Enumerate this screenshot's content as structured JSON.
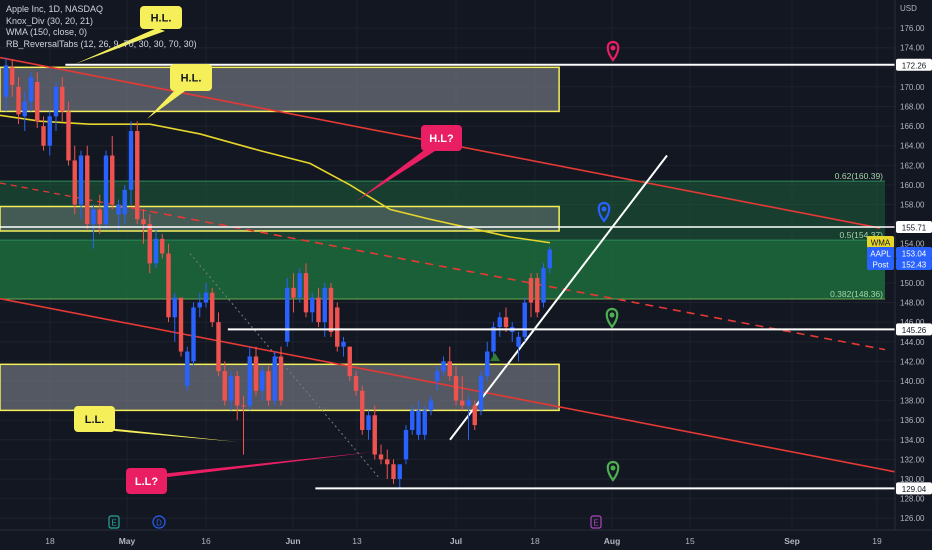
{
  "legend": {
    "title": "Apple Inc, 1D, NASDAQ",
    "ind1": "Knox_Div (30, 20, 21)",
    "ind2": "WMA (150, close, 0)",
    "ind3": "RB_ReversalTabs (12, 26, 9, 70, 30, 30, 70, 30)"
  },
  "chart_data": {
    "type": "candlestick",
    "currency_label": "USD",
    "ylim": [
      125,
      178
    ],
    "y_ticks": [
      126,
      128,
      130,
      132,
      134,
      136,
      138,
      140,
      142,
      144,
      146,
      148,
      150,
      152,
      154,
      156,
      158,
      160,
      162,
      164,
      166,
      168,
      170,
      172,
      174,
      176
    ],
    "x_ticks": [
      "18",
      "May",
      "16",
      "Jun",
      "13",
      "Jul",
      "18",
      "Aug",
      "15",
      "Sep",
      "19"
    ],
    "candles": [
      {
        "o": 169.0,
        "h": 173.0,
        "l": 167.5,
        "c": 172.2,
        "col": "blue"
      },
      {
        "o": 172.0,
        "h": 172.8,
        "l": 169.0,
        "c": 170.2,
        "col": "red"
      },
      {
        "o": 170.0,
        "h": 171.0,
        "l": 166.2,
        "c": 167.2,
        "col": "red"
      },
      {
        "o": 167.0,
        "h": 169.5,
        "l": 165.5,
        "c": 168.5,
        "col": "blue"
      },
      {
        "o": 168.5,
        "h": 171.5,
        "l": 167.5,
        "c": 171.0,
        "col": "blue"
      },
      {
        "o": 170.5,
        "h": 171.5,
        "l": 165.8,
        "c": 166.5,
        "col": "red"
      },
      {
        "o": 166.0,
        "h": 167.0,
        "l": 163.5,
        "c": 164.0,
        "col": "red"
      },
      {
        "o": 164.0,
        "h": 167.5,
        "l": 163.0,
        "c": 167.0,
        "col": "blue"
      },
      {
        "o": 167.0,
        "h": 170.5,
        "l": 165.5,
        "c": 170.0,
        "col": "blue"
      },
      {
        "o": 170.0,
        "h": 171.0,
        "l": 166.5,
        "c": 167.5,
        "col": "red"
      },
      {
        "o": 167.5,
        "h": 168.5,
        "l": 162.0,
        "c": 162.5,
        "col": "red"
      },
      {
        "o": 162.5,
        "h": 164.0,
        "l": 157.0,
        "c": 158.0,
        "col": "red"
      },
      {
        "o": 158.0,
        "h": 163.5,
        "l": 156.5,
        "c": 163.0,
        "col": "blue"
      },
      {
        "o": 163.0,
        "h": 164.0,
        "l": 155.5,
        "c": 156.0,
        "col": "red"
      },
      {
        "o": 156.0,
        "h": 158.0,
        "l": 153.5,
        "c": 157.5,
        "col": "blue"
      },
      {
        "o": 157.5,
        "h": 159.0,
        "l": 155.0,
        "c": 156.0,
        "col": "red"
      },
      {
        "o": 156.0,
        "h": 163.5,
        "l": 155.5,
        "c": 163.0,
        "col": "blue"
      },
      {
        "o": 163.0,
        "h": 165.0,
        "l": 157.5,
        "c": 158.0,
        "col": "red"
      },
      {
        "o": 158.0,
        "h": 158.5,
        "l": 155.5,
        "c": 157.0,
        "col": "blue"
      },
      {
        "o": 157.0,
        "h": 160.0,
        "l": 156.0,
        "c": 159.5,
        "col": "blue"
      },
      {
        "o": 159.5,
        "h": 166.5,
        "l": 158.0,
        "c": 165.5,
        "col": "blue"
      },
      {
        "o": 165.5,
        "h": 166.5,
        "l": 156.0,
        "c": 156.5,
        "col": "red"
      },
      {
        "o": 156.5,
        "h": 157.5,
        "l": 154.0,
        "c": 156.0,
        "col": "red"
      },
      {
        "o": 156.0,
        "h": 157.0,
        "l": 151.0,
        "c": 152.0,
        "col": "red"
      },
      {
        "o": 152.0,
        "h": 155.5,
        "l": 151.5,
        "c": 154.5,
        "col": "blue"
      },
      {
        "o": 154.5,
        "h": 155.0,
        "l": 152.5,
        "c": 153.0,
        "col": "red"
      },
      {
        "o": 153.0,
        "h": 154.0,
        "l": 146.0,
        "c": 146.5,
        "col": "red"
      },
      {
        "o": 146.5,
        "h": 149.0,
        "l": 144.0,
        "c": 148.5,
        "col": "blue"
      },
      {
        "o": 148.5,
        "h": 148.5,
        "l": 142.5,
        "c": 143.0,
        "col": "red"
      },
      {
        "o": 143.0,
        "h": 143.5,
        "l": 139.0,
        "c": 139.5,
        "col": "blue"
      },
      {
        "o": 142.0,
        "h": 148.0,
        "l": 141.5,
        "c": 147.5,
        "col": "blue"
      },
      {
        "o": 147.5,
        "h": 149.0,
        "l": 146.5,
        "c": 148.0,
        "col": "blue"
      },
      {
        "o": 148.0,
        "h": 150.0,
        "l": 147.5,
        "c": 149.0,
        "col": "blue"
      },
      {
        "o": 149.0,
        "h": 149.5,
        "l": 145.5,
        "c": 146.0,
        "col": "red"
      },
      {
        "o": 146.0,
        "h": 147.0,
        "l": 140.5,
        "c": 141.0,
        "col": "red"
      },
      {
        "o": 141.0,
        "h": 142.0,
        "l": 137.5,
        "c": 138.0,
        "col": "red"
      },
      {
        "o": 138.0,
        "h": 141.0,
        "l": 137.0,
        "c": 140.5,
        "col": "blue"
      },
      {
        "o": 140.5,
        "h": 141.0,
        "l": 136.0,
        "c": 137.5,
        "col": "red"
      },
      {
        "o": 137.5,
        "h": 138.5,
        "l": 132.5,
        "c": 137.5,
        "col": "red"
      },
      {
        "o": 137.5,
        "h": 143.5,
        "l": 137.0,
        "c": 142.5,
        "col": "blue"
      },
      {
        "o": 142.5,
        "h": 143.5,
        "l": 138.5,
        "c": 139.0,
        "col": "red"
      },
      {
        "o": 139.0,
        "h": 141.5,
        "l": 138.0,
        "c": 141.0,
        "col": "blue"
      },
      {
        "o": 141.0,
        "h": 141.5,
        "l": 137.5,
        "c": 138.0,
        "col": "red"
      },
      {
        "o": 138.0,
        "h": 143.0,
        "l": 137.5,
        "c": 142.5,
        "col": "blue"
      },
      {
        "o": 142.5,
        "h": 143.5,
        "l": 137.5,
        "c": 138.0,
        "col": "red"
      },
      {
        "o": 144.0,
        "h": 150.5,
        "l": 143.5,
        "c": 149.5,
        "col": "blue"
      },
      {
        "o": 149.5,
        "h": 151.0,
        "l": 147.0,
        "c": 148.5,
        "col": "red"
      },
      {
        "o": 148.5,
        "h": 151.5,
        "l": 148.0,
        "c": 151.0,
        "col": "blue"
      },
      {
        "o": 151.0,
        "h": 152.0,
        "l": 146.5,
        "c": 147.0,
        "col": "red"
      },
      {
        "o": 147.0,
        "h": 149.0,
        "l": 146.0,
        "c": 148.5,
        "col": "blue"
      },
      {
        "o": 148.5,
        "h": 149.5,
        "l": 145.5,
        "c": 146.0,
        "col": "red"
      },
      {
        "o": 146.0,
        "h": 150.0,
        "l": 144.5,
        "c": 149.5,
        "col": "blue"
      },
      {
        "o": 149.5,
        "h": 150.0,
        "l": 144.5,
        "c": 145.0,
        "col": "red"
      },
      {
        "o": 147.5,
        "h": 148.0,
        "l": 143.0,
        "c": 143.5,
        "col": "red"
      },
      {
        "o": 143.5,
        "h": 144.5,
        "l": 142.5,
        "c": 144.0,
        "col": "blue"
      },
      {
        "o": 143.5,
        "h": 143.5,
        "l": 140.0,
        "c": 140.5,
        "col": "red"
      },
      {
        "o": 140.5,
        "h": 141.0,
        "l": 138.5,
        "c": 139.0,
        "col": "red"
      },
      {
        "o": 139.0,
        "h": 139.5,
        "l": 134.5,
        "c": 135.0,
        "col": "red"
      },
      {
        "o": 135.0,
        "h": 137.0,
        "l": 134.0,
        "c": 136.5,
        "col": "blue"
      },
      {
        "o": 136.5,
        "h": 137.5,
        "l": 132.0,
        "c": 132.5,
        "col": "red"
      },
      {
        "o": 132.5,
        "h": 133.5,
        "l": 131.5,
        "c": 132.0,
        "col": "red"
      },
      {
        "o": 132.0,
        "h": 133.0,
        "l": 130.0,
        "c": 131.5,
        "col": "red"
      },
      {
        "o": 131.5,
        "h": 132.0,
        "l": 129.5,
        "c": 130.0,
        "col": "red"
      },
      {
        "o": 130.0,
        "h": 131.0,
        "l": 129.0,
        "c": 131.5,
        "col": "blue"
      },
      {
        "o": 132.0,
        "h": 135.5,
        "l": 131.5,
        "c": 135.0,
        "col": "blue"
      },
      {
        "o": 135.0,
        "h": 137.5,
        "l": 134.5,
        "c": 137.0,
        "col": "blue"
      },
      {
        "o": 137.0,
        "h": 138.0,
        "l": 134.0,
        "c": 134.5,
        "col": "blue"
      },
      {
        "o": 134.5,
        "h": 137.5,
        "l": 134.0,
        "c": 137.0,
        "col": "blue"
      },
      {
        "o": 137.0,
        "h": 138.5,
        "l": 136.5,
        "c": 138.0,
        "col": "blue"
      },
      {
        "o": 140.0,
        "h": 141.5,
        "l": 139.0,
        "c": 141.0,
        "col": "blue"
      },
      {
        "o": 141.0,
        "h": 142.5,
        "l": 140.5,
        "c": 142.0,
        "col": "blue"
      },
      {
        "o": 142.0,
        "h": 143.5,
        "l": 140.0,
        "c": 140.5,
        "col": "red"
      },
      {
        "o": 140.5,
        "h": 141.5,
        "l": 137.5,
        "c": 138.0,
        "col": "red"
      },
      {
        "o": 138.0,
        "h": 140.5,
        "l": 137.0,
        "c": 137.5,
        "col": "red"
      },
      {
        "o": 137.5,
        "h": 138.5,
        "l": 134.0,
        "c": 138.0,
        "col": "blue"
      },
      {
        "o": 137.5,
        "h": 138.0,
        "l": 135.0,
        "c": 135.5,
        "col": "red"
      },
      {
        "o": 137.0,
        "h": 141.0,
        "l": 136.5,
        "c": 140.5,
        "col": "blue"
      },
      {
        "o": 140.5,
        "h": 144.0,
        "l": 140.0,
        "c": 143.0,
        "col": "blue"
      },
      {
        "o": 143.0,
        "h": 146.0,
        "l": 142.5,
        "c": 145.5,
        "col": "blue"
      },
      {
        "o": 145.5,
        "h": 147.0,
        "l": 144.5,
        "c": 146.5,
        "col": "blue"
      },
      {
        "o": 146.5,
        "h": 147.5,
        "l": 145.0,
        "c": 145.5,
        "col": "red"
      },
      {
        "o": 145.5,
        "h": 146.0,
        "l": 144.0,
        "c": 145.0,
        "col": "blue"
      },
      {
        "o": 143.5,
        "h": 145.0,
        "l": 142.0,
        "c": 144.5,
        "col": "blue"
      },
      {
        "o": 144.5,
        "h": 148.5,
        "l": 144.0,
        "c": 148.0,
        "col": "blue"
      },
      {
        "o": 148.0,
        "h": 151.0,
        "l": 146.5,
        "c": 150.5,
        "col": "red"
      },
      {
        "o": 150.5,
        "h": 151.0,
        "l": 146.5,
        "c": 147.0,
        "col": "red"
      },
      {
        "o": 148.0,
        "h": 152.0,
        "l": 147.5,
        "c": 151.5,
        "col": "blue"
      },
      {
        "o": 151.5,
        "h": 153.7,
        "l": 151.0,
        "c": 153.4,
        "col": "blue"
      }
    ],
    "rectangles": [
      {
        "from": 0,
        "to": 88.5,
        "y1": 167.5,
        "y2": 172.0,
        "fill": "#787b86",
        "stroke": "#f5f05a"
      },
      {
        "from": 0,
        "to": 88.5,
        "y1": 137.0,
        "y2": 141.7,
        "fill": "#787b86",
        "stroke": "#f5f05a"
      },
      {
        "from": 0,
        "to": 88.5,
        "y1": 155.3,
        "y2": 157.8,
        "fill": "#5a6a6a",
        "stroke": "#f5f05a"
      }
    ],
    "fib_zones": [
      {
        "y1": 148.36,
        "y2": 160.39,
        "from": 0,
        "label_382": "0.382(148.36)",
        "label_5": "0.5(154.37)",
        "label_62": "0.62(160.39)"
      }
    ],
    "horizontal_lines": [
      {
        "y": 172.26,
        "from": 9.5,
        "color": "#ffffff"
      },
      {
        "y": 145.26,
        "from": 35.5,
        "color": "#ffffff"
      },
      {
        "y": 129.04,
        "from": 49.5,
        "color": "#ffffff"
      }
    ],
    "annotations": [
      "H.L.",
      "H.L.",
      "H.L?",
      "L.L.",
      "L.L?"
    ],
    "price_labels": [
      {
        "y": 172.26,
        "text": "172.26",
        "bg": "#ffffff",
        "fg": "#131722"
      },
      {
        "y": 155.71,
        "text": "155.71",
        "bg": "#ffffff",
        "fg": "#131722"
      },
      {
        "y": 153.04,
        "text": "153.04",
        "bg": "#2962ff",
        "fg": "#ffffff"
      },
      {
        "y": 152.43,
        "text": "152.43",
        "bg": "#2962ff",
        "fg": "#ffffff"
      },
      {
        "y": 145.26,
        "text": "145.26",
        "bg": "#ffffff",
        "fg": "#131722"
      },
      {
        "y": 129.04,
        "text": "129.04",
        "bg": "#ffffff",
        "fg": "#131722"
      }
    ],
    "series_tags": [
      "WMA",
      "AAPL",
      "Post"
    ],
    "event_markers": [
      "E",
      "D",
      "E"
    ]
  }
}
